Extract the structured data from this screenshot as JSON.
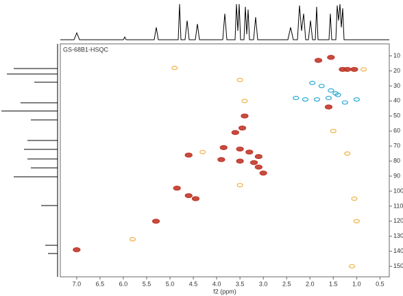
{
  "chart_data": {
    "type": "scatter",
    "title": "GS-68B1-HSQC",
    "xlabel": "f2 (ppm)",
    "xlim": [
      7.35,
      0.3
    ],
    "xticks": [
      {
        "value": 7.0,
        "label": "7.0"
      },
      6.5,
      {
        "value": 6.0,
        "label": "6.0"
      },
      5.5,
      {
        "value": 5.0,
        "label": "5.0"
      },
      4.5,
      {
        "value": 4.0,
        "label": "4.0"
      },
      3.5,
      {
        "value": 3.0,
        "label": "3.0"
      },
      2.5,
      {
        "value": 2.0,
        "label": "2.0"
      },
      1.5,
      {
        "value": 1.0,
        "label": "1.0"
      },
      0.5
    ],
    "ylim": [
      2,
      157
    ],
    "yticks": [
      10,
      20,
      30,
      40,
      50,
      60,
      70,
      80,
      90,
      100,
      110,
      120,
      130,
      140,
      150
    ],
    "series": [
      {
        "color": "#c0392b",
        "x": [
          1.82,
          1.55,
          1.3,
          1.2,
          1.05,
          1.6,
          3.4,
          3.45,
          3.6,
          3.85,
          3.5,
          3.3,
          3.1,
          3.9,
          3.5,
          3.2,
          3.1,
          3.0,
          4.6,
          4.85,
          4.6,
          4.45,
          5.3,
          7.0
        ],
        "values": [
          13,
          11,
          19,
          19,
          19,
          44,
          50,
          58,
          61,
          71,
          72,
          74,
          77,
          79,
          80,
          81,
          84,
          88,
          76,
          98,
          103,
          105,
          120,
          139
        ]
      },
      {
        "color": "#29a9d6",
        "x": [
          1.95,
          1.75,
          1.55,
          1.45,
          2.3,
          2.1,
          1.85,
          1.6,
          1.4,
          1.0,
          1.25
        ],
        "values": [
          28,
          30,
          33,
          35,
          38,
          39,
          39,
          38,
          36,
          39,
          41
        ]
      },
      {
        "color": "#f0b040",
        "x": [
          4.9,
          3.5,
          3.4,
          3.5,
          1.5,
          1.05,
          0.85,
          1.2,
          1.0,
          1.1,
          4.3,
          5.8
        ],
        "values": [
          18,
          26,
          40,
          96,
          60,
          105,
          19,
          75,
          120,
          150,
          74,
          132
        ]
      }
    ]
  }
}
